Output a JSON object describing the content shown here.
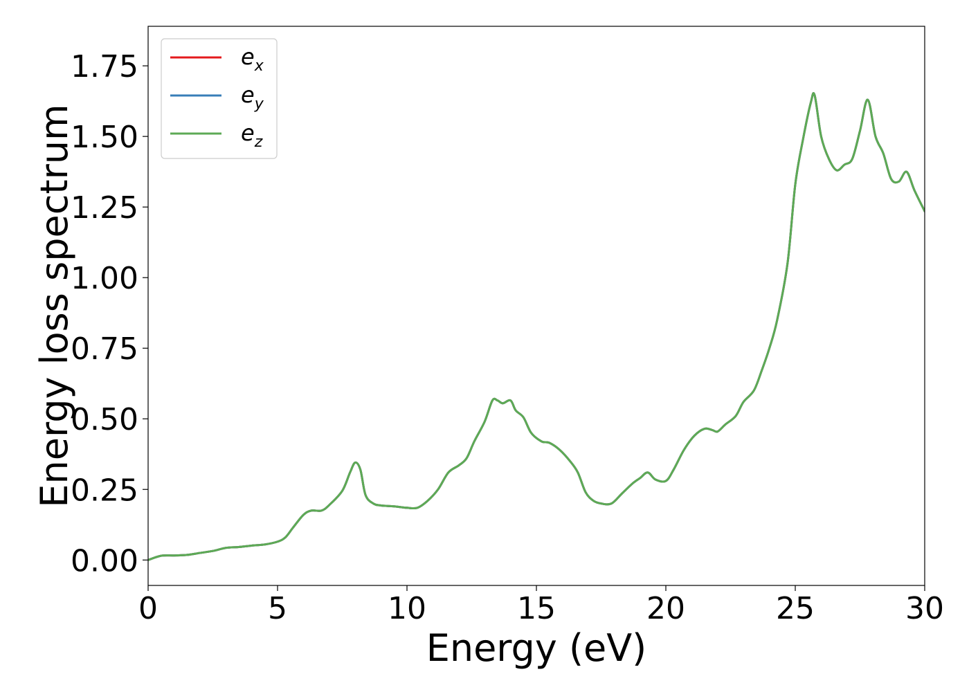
{
  "chart_data": {
    "type": "line",
    "title": "",
    "xlabel": "Energy (eV)",
    "ylabel": "Energy loss spectrum",
    "xlim": [
      0,
      30
    ],
    "ylim": [
      -0.09,
      1.89
    ],
    "xticks": [
      0,
      5,
      10,
      15,
      20,
      25,
      30
    ],
    "xtick_labels": [
      "0",
      "5",
      "10",
      "15",
      "20",
      "25",
      "30"
    ],
    "yticks": [
      0,
      0.25,
      0.5,
      0.75,
      1.0,
      1.25,
      1.5,
      1.75
    ],
    "ytick_labels": [
      "0.00",
      "0.25",
      "0.50",
      "0.75",
      "1.00",
      "1.25",
      "1.50",
      "1.75"
    ],
    "grid": false,
    "legend_position": "top-left",
    "x": [
      0,
      0.5,
      1,
      1.5,
      2,
      2.5,
      3,
      3.5,
      4,
      4.5,
      5,
      5.3,
      5.6,
      6,
      6.3,
      6.7,
      7,
      7.5,
      7.8,
      8,
      8.2,
      8.4,
      8.7,
      9,
      9.5,
      10,
      10.4,
      10.8,
      11.2,
      11.6,
      12,
      12.3,
      12.6,
      13,
      13.3,
      13.5,
      13.7,
      14,
      14.2,
      14.5,
      14.8,
      15.2,
      15.5,
      15.9,
      16.3,
      16.6,
      16.9,
      17.2,
      17.5,
      17.9,
      18.3,
      18.7,
      19,
      19.3,
      19.6,
      20,
      20.3,
      20.7,
      21.1,
      21.5,
      21.8,
      22,
      22.3,
      22.7,
      23,
      23.4,
      23.7,
      24,
      24.3,
      24.7,
      25,
      25.3,
      25.6,
      25.75,
      26,
      26.3,
      26.6,
      26.9,
      27.2,
      27.5,
      27.8,
      28.1,
      28.4,
      28.7,
      29,
      29.3,
      29.6,
      30
    ],
    "series": [
      {
        "name": "e_x",
        "label_base": "e",
        "label_sub": "x",
        "color": "#e41a1c",
        "values": [
          0,
          0.015,
          0.016,
          0.018,
          0.025,
          0.032,
          0.043,
          0.046,
          0.051,
          0.055,
          0.065,
          0.08,
          0.115,
          0.16,
          0.175,
          0.175,
          0.195,
          0.245,
          0.31,
          0.345,
          0.32,
          0.23,
          0.2,
          0.193,
          0.19,
          0.185,
          0.185,
          0.21,
          0.25,
          0.31,
          0.335,
          0.36,
          0.42,
          0.49,
          0.565,
          0.565,
          0.555,
          0.565,
          0.53,
          0.505,
          0.45,
          0.42,
          0.415,
          0.39,
          0.35,
          0.31,
          0.24,
          0.21,
          0.2,
          0.2,
          0.235,
          0.27,
          0.29,
          0.31,
          0.285,
          0.28,
          0.32,
          0.39,
          0.44,
          0.465,
          0.46,
          0.455,
          0.48,
          0.51,
          0.56,
          0.6,
          0.67,
          0.75,
          0.85,
          1.05,
          1.33,
          1.49,
          1.62,
          1.645,
          1.5,
          1.42,
          1.38,
          1.4,
          1.42,
          1.52,
          1.63,
          1.5,
          1.44,
          1.35,
          1.34,
          1.375,
          1.31,
          1.235
        ]
      },
      {
        "name": "e_y",
        "label_base": "e",
        "label_sub": "y",
        "color": "#377eb8",
        "values": [
          0,
          0.015,
          0.016,
          0.018,
          0.025,
          0.032,
          0.043,
          0.046,
          0.051,
          0.055,
          0.065,
          0.08,
          0.115,
          0.16,
          0.175,
          0.175,
          0.195,
          0.245,
          0.31,
          0.345,
          0.32,
          0.23,
          0.2,
          0.193,
          0.19,
          0.185,
          0.185,
          0.21,
          0.25,
          0.31,
          0.335,
          0.36,
          0.42,
          0.49,
          0.565,
          0.565,
          0.555,
          0.565,
          0.53,
          0.505,
          0.45,
          0.42,
          0.415,
          0.39,
          0.35,
          0.31,
          0.24,
          0.21,
          0.2,
          0.2,
          0.235,
          0.27,
          0.29,
          0.31,
          0.285,
          0.28,
          0.32,
          0.39,
          0.44,
          0.465,
          0.46,
          0.455,
          0.48,
          0.51,
          0.56,
          0.6,
          0.67,
          0.75,
          0.85,
          1.05,
          1.33,
          1.49,
          1.62,
          1.645,
          1.5,
          1.42,
          1.38,
          1.4,
          1.42,
          1.52,
          1.63,
          1.5,
          1.44,
          1.35,
          1.34,
          1.375,
          1.31,
          1.235
        ]
      },
      {
        "name": "e_z",
        "label_base": "e",
        "label_sub": "z",
        "color": "#5daa55",
        "values": [
          0,
          0.015,
          0.016,
          0.018,
          0.025,
          0.032,
          0.043,
          0.046,
          0.051,
          0.055,
          0.065,
          0.08,
          0.115,
          0.16,
          0.175,
          0.175,
          0.195,
          0.245,
          0.31,
          0.345,
          0.32,
          0.23,
          0.2,
          0.193,
          0.19,
          0.185,
          0.185,
          0.21,
          0.25,
          0.31,
          0.335,
          0.36,
          0.42,
          0.49,
          0.565,
          0.565,
          0.555,
          0.565,
          0.53,
          0.505,
          0.45,
          0.42,
          0.415,
          0.39,
          0.35,
          0.31,
          0.24,
          0.21,
          0.2,
          0.2,
          0.235,
          0.27,
          0.29,
          0.31,
          0.285,
          0.28,
          0.32,
          0.39,
          0.44,
          0.465,
          0.46,
          0.455,
          0.48,
          0.51,
          0.56,
          0.6,
          0.67,
          0.75,
          0.85,
          1.05,
          1.33,
          1.49,
          1.62,
          1.645,
          1.5,
          1.42,
          1.38,
          1.4,
          1.42,
          1.52,
          1.63,
          1.5,
          1.44,
          1.35,
          1.34,
          1.375,
          1.31,
          1.235
        ]
      }
    ]
  }
}
